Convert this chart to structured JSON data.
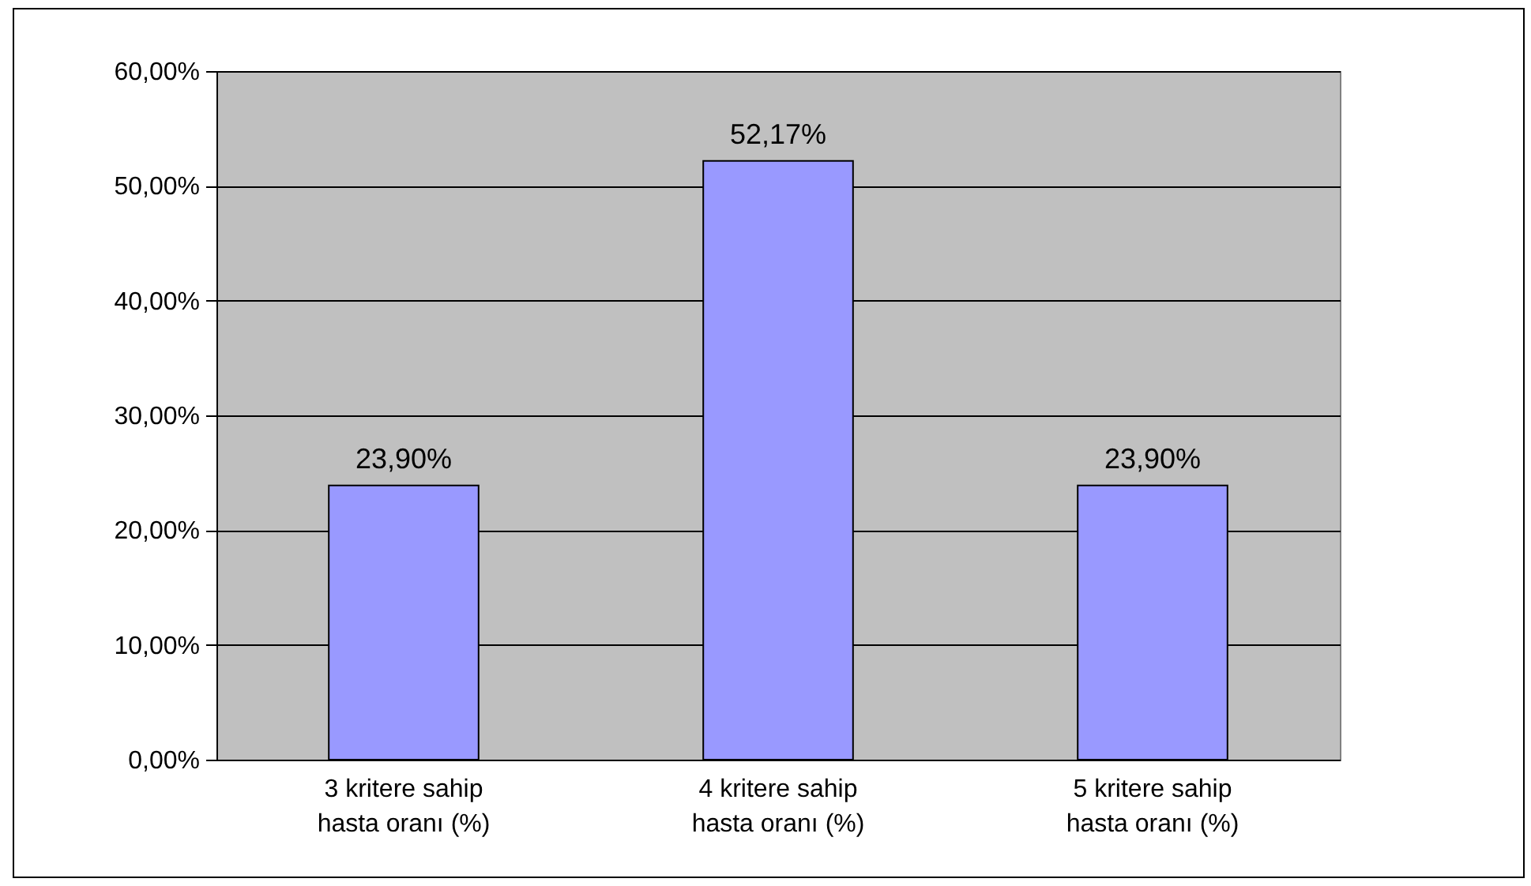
{
  "chart_data": {
    "type": "bar",
    "categories": [
      "3 kritere sahip hasta oranı (%)",
      "4 kritere sahip hasta oranı (%)",
      "5 kritere sahip hasta oranı (%)"
    ],
    "values": [
      23.9,
      52.17,
      23.9
    ],
    "value_labels": [
      "23,90%",
      "52,17%",
      "23,90%"
    ],
    "color": "#9999ff",
    "ylim": [
      0,
      60
    ],
    "yticks": [
      {
        "value": 0,
        "label": "0,00%"
      },
      {
        "value": 10,
        "label": "10,00%"
      },
      {
        "value": 20,
        "label": "20,00%"
      },
      {
        "value": 30,
        "label": "30,00%"
      },
      {
        "value": 40,
        "label": "40,00%"
      },
      {
        "value": 50,
        "label": "50,00%"
      },
      {
        "value": 60,
        "label": "60,00%"
      }
    ],
    "grid": "y"
  }
}
